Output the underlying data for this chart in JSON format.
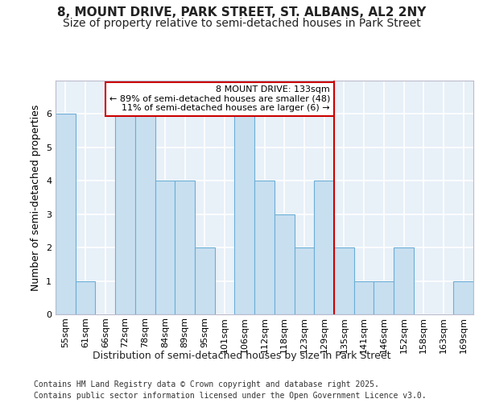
{
  "title1": "8, MOUNT DRIVE, PARK STREET, ST. ALBANS, AL2 2NY",
  "title2": "Size of property relative to semi-detached houses in Park Street",
  "xlabel": "Distribution of semi-detached houses by size in Park Street",
  "ylabel": "Number of semi-detached properties",
  "categories": [
    "55sqm",
    "61sqm",
    "66sqm",
    "72sqm",
    "78sqm",
    "84sqm",
    "89sqm",
    "95sqm",
    "101sqm",
    "106sqm",
    "112sqm",
    "118sqm",
    "123sqm",
    "129sqm",
    "135sqm",
    "141sqm",
    "146sqm",
    "152sqm",
    "158sqm",
    "163sqm",
    "169sqm"
  ],
  "values": [
    6,
    1,
    0,
    6,
    6,
    4,
    4,
    2,
    0,
    6,
    4,
    3,
    2,
    4,
    2,
    1,
    1,
    2,
    0,
    0,
    1
  ],
  "bar_color": "#c8dff0",
  "bar_edge_color": "#6aaed6",
  "background_color": "#e8f0f8",
  "grid_color": "#ffffff",
  "red_line_index": 14,
  "red_line_color": "#cc0000",
  "annotation_text": "8 MOUNT DRIVE: 133sqm\n← 89% of semi-detached houses are smaller (48)\n11% of semi-detached houses are larger (6) →",
  "annotation_box_color": "#cc0000",
  "ylim": [
    0,
    7
  ],
  "yticks": [
    0,
    1,
    2,
    3,
    4,
    5,
    6
  ],
  "footnote1": "Contains HM Land Registry data © Crown copyright and database right 2025.",
  "footnote2": "Contains public sector information licensed under the Open Government Licence v3.0.",
  "title_fontsize": 11,
  "subtitle_fontsize": 10,
  "axis_label_fontsize": 9,
  "tick_fontsize": 8,
  "footnote_fontsize": 7,
  "annot_fontsize": 8
}
